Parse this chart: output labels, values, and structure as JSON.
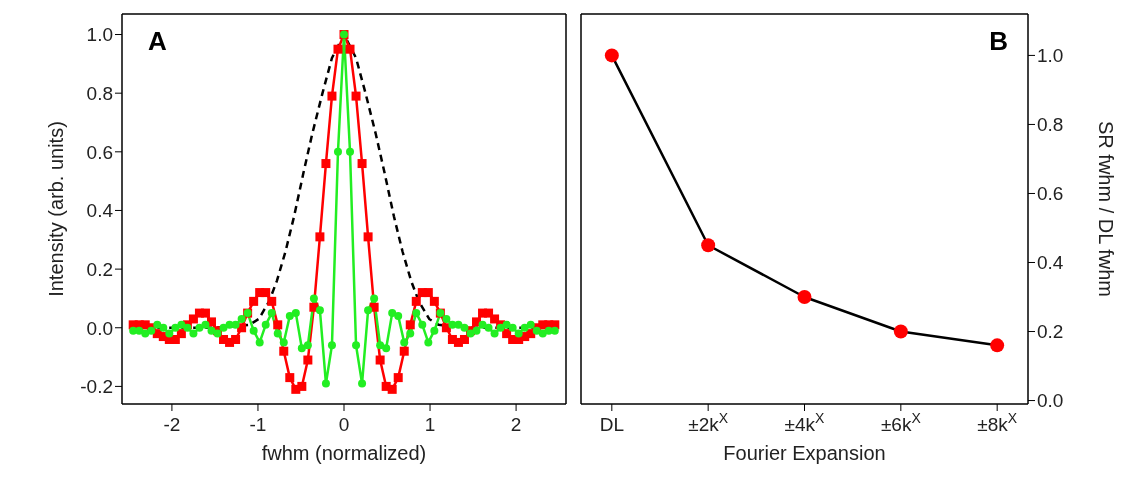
{
  "chart_data": [
    {
      "type": "line",
      "xlabel": "fwhm (normalized)",
      "ylabel": "Intensity (arb. units)",
      "annotations": [
        "A"
      ],
      "xlim": [
        -2.58,
        2.58
      ],
      "xticks": [
        -2,
        -1,
        0,
        1,
        2
      ],
      "ylim": [
        -0.26,
        1.07
      ],
      "yticks": [
        -0.2,
        {
          "value": 0,
          "label": "0.0"
        },
        0.2,
        0.4,
        0.6,
        0.8,
        {
          "value": 1,
          "label": "1.0"
        }
      ],
      "x": [
        -2.45,
        -2.38,
        -2.31,
        -2.24,
        -2.17,
        -2.1,
        -2.03,
        -1.96,
        -1.89,
        -1.82,
        -1.75,
        -1.68,
        -1.61,
        -1.54,
        -1.47,
        -1.4,
        -1.33,
        -1.26,
        -1.19,
        -1.12,
        -1.05,
        -0.98,
        -0.91,
        -0.84,
        -0.77,
        -0.7,
        -0.63,
        -0.56,
        -0.49,
        -0.42,
        -0.35,
        -0.28,
        -0.21,
        -0.14,
        -0.07,
        0,
        0.07,
        0.14,
        0.21,
        0.28,
        0.35,
        0.42,
        0.49,
        0.56,
        0.63,
        0.7,
        0.77,
        0.84,
        0.91,
        0.98,
        1.05,
        1.12,
        1.19,
        1.26,
        1.33,
        1.4,
        1.47,
        1.54,
        1.61,
        1.68,
        1.75,
        1.82,
        1.89,
        1.96,
        2.03,
        2.1,
        2.17,
        2.24,
        2.31,
        2.38,
        2.45
      ],
      "series": [
        {
          "color": "#000000",
          "line_style": "dashed",
          "marker": "none",
          "x": [
            -2.45,
            -1.5,
            -1.1,
            -0.99,
            -0.87,
            -0.78,
            -0.68,
            -0.58,
            -0.47,
            -0.37,
            -0.25,
            -0.14,
            0,
            0.14,
            0.25,
            0.37,
            0.47,
            0.58,
            0.68,
            0.78,
            0.87,
            0.99,
            1.1,
            1.5,
            2.45
          ],
          "values": [
            0,
            0,
            0.01,
            0.03,
            0.09,
            0.16,
            0.26,
            0.38,
            0.53,
            0.66,
            0.8,
            0.92,
            1.0,
            0.92,
            0.8,
            0.66,
            0.53,
            0.38,
            0.26,
            0.16,
            0.09,
            0.03,
            0.01,
            0,
            0
          ]
        },
        {
          "color": "#ff0000",
          "line_style": "solid",
          "marker": "square",
          "values": [
            0.01,
            0.01,
            0.01,
            0.0,
            -0.02,
            -0.03,
            -0.04,
            -0.04,
            -0.02,
            0.01,
            0.03,
            0.05,
            0.05,
            0.02,
            -0.01,
            -0.04,
            -0.05,
            -0.04,
            0.0,
            0.05,
            0.09,
            0.12,
            0.12,
            0.09,
            0.01,
            -0.08,
            -0.17,
            -0.21,
            -0.2,
            -0.11,
            0.07,
            0.31,
            0.56,
            0.79,
            0.95,
            1.0,
            0.95,
            0.79,
            0.56,
            0.31,
            0.07,
            -0.11,
            -0.2,
            -0.21,
            -0.17,
            -0.08,
            0.01,
            0.09,
            0.12,
            0.12,
            0.09,
            0.05,
            0.0,
            -0.04,
            -0.05,
            -0.04,
            -0.01,
            0.02,
            0.05,
            0.05,
            0.03,
            0.01,
            -0.02,
            -0.04,
            -0.04,
            -0.03,
            -0.02,
            0.0,
            0.01,
            0.01,
            0.01
          ]
        },
        {
          "color": "#22ee22",
          "line_style": "solid",
          "marker": "circle",
          "values": [
            -0.01,
            -0.01,
            -0.02,
            -0.01,
            0.01,
            0.0,
            -0.02,
            0.0,
            0.01,
            0.0,
            -0.02,
            0.0,
            0.01,
            -0.01,
            -0.02,
            0.0,
            0.01,
            0.01,
            0.03,
            0.05,
            -0.01,
            -0.05,
            0.01,
            0.05,
            -0.02,
            -0.05,
            0.04,
            0.05,
            -0.07,
            -0.06,
            0.1,
            0.06,
            -0.19,
            -0.06,
            0.6,
            1.0,
            0.6,
            -0.06,
            -0.19,
            0.06,
            0.1,
            -0.06,
            -0.07,
            0.05,
            0.04,
            -0.05,
            -0.02,
            0.05,
            0.01,
            -0.05,
            -0.01,
            0.05,
            0.03,
            0.01,
            0.01,
            0.0,
            -0.02,
            -0.01,
            0.01,
            0.0,
            -0.02,
            0.0,
            0.01,
            0.0,
            -0.02,
            0.0,
            0.01,
            -0.01,
            -0.02,
            -0.01,
            -0.01
          ]
        }
      ]
    },
    {
      "type": "line",
      "xlabel": "Fourier Expansion",
      "y2label": "SR fwhm / DL fwhm",
      "annotations": [
        "B"
      ],
      "categories": [
        "DL",
        "±2k$^{X}$",
        "±4k$^{X}$",
        "±6k$^{X}$",
        "±8k$^{X}$"
      ],
      "y2lim": [
        -0.01,
        1.12
      ],
      "y2ticks": [
        {
          "value": 0,
          "label": "0.0"
        },
        0.2,
        0.4,
        0.6,
        0.8,
        {
          "value": 1,
          "label": "1.0"
        }
      ],
      "series": [
        {
          "color": "#000000",
          "marker": "circle",
          "colors": [
            "#ff0000",
            "#ff0000",
            "#ff0000",
            "#ff0000",
            "#ff0000"
          ],
          "line_style": "solid",
          "axis": "y2",
          "values": [
            1.0,
            0.45,
            0.3,
            0.2,
            0.16
          ]
        }
      ]
    }
  ]
}
